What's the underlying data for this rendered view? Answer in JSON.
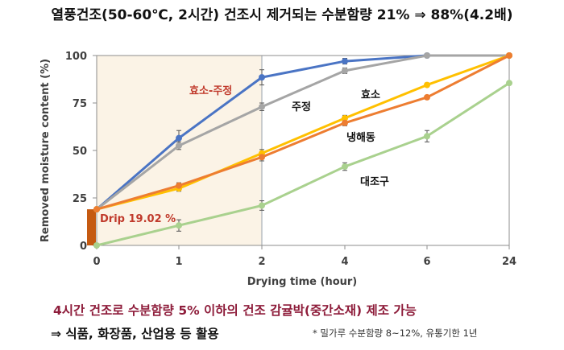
{
  "header": {
    "title": "열풍건조(50-60℃, 2시간) 건조시 제거되는 수분함량 21% ⇒ 88%(4.2배)"
  },
  "colors": {
    "enzyme_ethanol": "#4a74c4",
    "ethanol": "#a5a5a5",
    "enzyme": "#ffc000",
    "freeze_thaw": "#ed7d31",
    "control": "#a9d18e",
    "drip_bar": "#c55a11",
    "highlight_fill": "#fbf3e6",
    "label_red": "#c0392b"
  },
  "chart_data": {
    "type": "line",
    "categories": [
      "0",
      "1",
      "2",
      "4",
      "6",
      "24"
    ],
    "xlabel": "Drying time (hour)",
    "ylabel": "Removed moisture content (%)",
    "ylim": [
      0,
      100
    ],
    "yticks": [
      "0",
      "25",
      "50",
      "75",
      "100"
    ],
    "grid": false,
    "highlight_region": [
      0,
      2
    ],
    "series": [
      {
        "name": "효소-주정",
        "color": "#4a74c4",
        "values": [
          19,
          56.5,
          88.5,
          97,
          100,
          100
        ],
        "errors": [
          0,
          4,
          4,
          1.5,
          0.5,
          0
        ]
      },
      {
        "name": "주정",
        "color": "#a5a5a5",
        "values": [
          19,
          52.5,
          73,
          92,
          100,
          100
        ],
        "errors": [
          0,
          2,
          2,
          1.5,
          0.5,
          0
        ]
      },
      {
        "name": "효소",
        "color": "#ffc000",
        "values": [
          19,
          30,
          48.5,
          67,
          84.5,
          100
        ],
        "errors": [
          0,
          1.5,
          2,
          1.5,
          1,
          0
        ]
      },
      {
        "name": "냉해동",
        "color": "#ed7d31",
        "values": [
          19,
          31.5,
          46.5,
          64.5,
          78,
          100
        ],
        "errors": [
          0,
          1.5,
          2,
          1.5,
          1,
          0
        ]
      },
      {
        "name": "대조구",
        "color": "#a9d18e",
        "values": [
          0,
          10.5,
          21,
          41.5,
          57.5,
          85.5
        ],
        "errors": [
          0,
          3,
          2.5,
          2,
          3,
          0.5
        ]
      }
    ],
    "drip": {
      "label": "Drip 19.02 %",
      "value": 19.02
    }
  },
  "footer": {
    "line1": "4시간 건조로 수분함량 5% 이하의 건조 감귤박(중간소재) 제조 가능",
    "line2": "⇒ 식품, 화장품, 산업용 등 활용",
    "note": "* 밀가루 수분함량 8~12%, 유통기한 1년"
  }
}
